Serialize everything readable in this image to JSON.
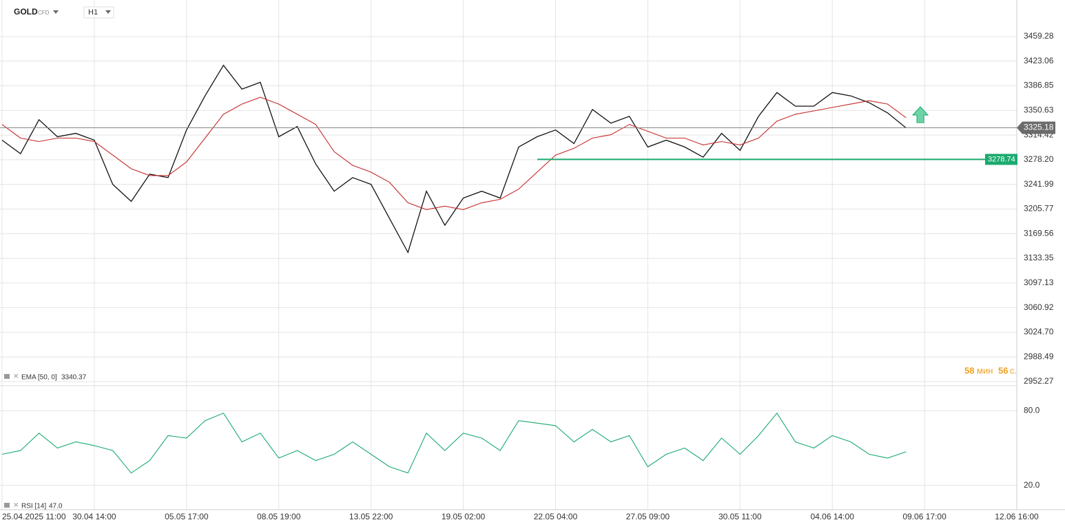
{
  "header": {
    "symbol": "GOLD",
    "kind": "CFD",
    "timeframe": "H1"
  },
  "timer": {
    "minutes": "58",
    "min_unit": "мин",
    "seconds": "56",
    "sec_unit": "с."
  },
  "chart_data": [
    {
      "type": "line",
      "x": [
        0,
        0.2,
        0.4,
        0.6,
        0.8,
        1,
        1.2,
        1.4,
        1.6,
        1.8,
        2,
        2.2,
        2.4,
        2.6,
        2.8,
        3,
        3.2,
        3.4,
        3.6,
        3.8,
        4,
        4.2,
        4.4,
        4.6,
        4.8,
        5,
        5.2,
        5.4,
        5.6,
        5.8,
        6,
        6.2,
        6.4,
        6.6,
        6.8,
        7,
        7.2,
        7.4,
        7.6,
        7.8,
        8,
        8.2,
        8.4,
        8.6,
        8.8,
        9,
        9.2,
        9.4,
        9.6,
        9.8
      ],
      "xlim": [
        0,
        11
      ],
      "xticks": [
        {
          "value": 0,
          "label": "25.04.2025  11:00"
        },
        {
          "value": 1,
          "label": "30.04  14:00"
        },
        {
          "value": 2,
          "label": "05.05  17:00"
        },
        {
          "value": 3,
          "label": "08.05  19:00"
        },
        {
          "value": 4,
          "label": "13.05  22:00"
        },
        {
          "value": 5,
          "label": "19.05  02:00"
        },
        {
          "value": 6,
          "label": "22.05  04:00"
        },
        {
          "value": 7,
          "label": "27.05  09:00"
        },
        {
          "value": 8,
          "label": "30.05  11:00"
        },
        {
          "value": 9,
          "label": "04.06  14:00"
        },
        {
          "value": 10,
          "label": "09.06  17:00"
        },
        {
          "value": 11,
          "label": "12.06  16:00"
        }
      ],
      "ylim": [
        2946.2,
        3494.7
      ],
      "yticks": [
        3459.28,
        3423.06,
        3386.85,
        3350.63,
        3314.42,
        {
          "value": 3278.2,
          "label": "3278.20"
        },
        3241.99,
        3205.77,
        3169.56,
        3133.35,
        3097.13,
        3060.92,
        {
          "value": 3024.7,
          "label": "3024.70"
        },
        2988.49,
        2952.27
      ],
      "grid": true,
      "series": [
        {
          "color": "#111111",
          "values": [
            3307,
            3287,
            3337,
            3312,
            3317,
            3307,
            3242,
            3217,
            3257,
            3252,
            3322,
            3372,
            3417,
            3382,
            3392,
            3312,
            3327,
            3272,
            3232,
            3252,
            3242,
            3192,
            3142,
            3232,
            3182,
            3222,
            3232,
            3222,
            3297,
            3312,
            3322,
            3302,
            3352,
            3332,
            3342,
            3297,
            3307,
            3297,
            3282,
            3317,
            3292,
            3342,
            3377,
            3357,
            3357,
            3377,
            3372,
            3362,
            3347,
            3325
          ]
        },
        {
          "name": "EMA [50, 0]",
          "value_label": "3340.37",
          "color": "#c62828",
          "values": [
            3330,
            3310,
            3305,
            3310,
            3310,
            3305,
            3285,
            3265,
            3255,
            3255,
            3275,
            3310,
            3345,
            3360,
            3370,
            3360,
            3345,
            3330,
            3290,
            3270,
            3260,
            3245,
            3215,
            3205,
            3210,
            3205,
            3215,
            3220,
            3235,
            3260,
            3285,
            3295,
            3310,
            3315,
            3330,
            3320,
            3310,
            3310,
            3300,
            3305,
            3300,
            3310,
            3335,
            3345,
            3350,
            3355,
            3360,
            3365,
            3360,
            3340
          ]
        }
      ],
      "current_price": 3325.18,
      "support_level": 3278.74
    },
    {
      "type": "line",
      "ylim": [
        0,
        100
      ],
      "yticks": [
        {
          "value": 80,
          "label": "80.0"
        },
        {
          "value": 20,
          "label": "20.0"
        }
      ],
      "series": [
        {
          "name": "RSI [14]",
          "value_label": "47.0",
          "color": "#1aaa6f",
          "values": [
            45,
            48,
            62,
            50,
            55,
            52,
            48,
            30,
            40,
            60,
            58,
            72,
            78,
            55,
            62,
            42,
            48,
            40,
            45,
            55,
            45,
            35,
            30,
            62,
            48,
            62,
            58,
            48,
            72,
            70,
            68,
            55,
            65,
            55,
            60,
            35,
            45,
            50,
            40,
            58,
            45,
            60,
            78,
            55,
            50,
            60,
            55,
            45,
            42,
            47
          ]
        }
      ]
    }
  ]
}
